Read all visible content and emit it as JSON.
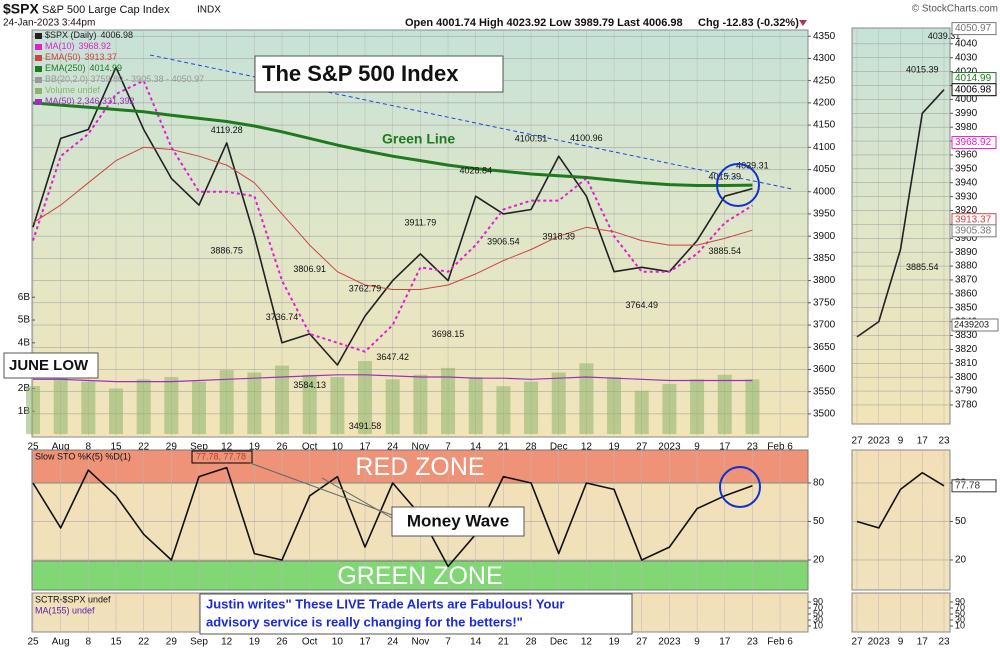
{
  "header": {
    "symbol": "$SPX",
    "name": "S&P 500 Large Cap Index",
    "exchange": "INDX",
    "timestamp": "24-Jan-2023 3:44pm",
    "quote": "Open 4001.74  High 4023.92  Low 3989.79  Last 4006.98",
    "change": "Chg -12.83 (-0.32%)",
    "credit": "© StockCharts.com"
  },
  "chart_data": [
    {
      "type": "line",
      "title": "The S&P 500 Index",
      "annotations": [
        "Green Line",
        "JUNE LOW"
      ],
      "categories": [
        "25",
        "Aug",
        "8",
        "15",
        "22",
        "29",
        "Sep",
        "12",
        "19",
        "26",
        "Oct",
        "10",
        "17",
        "24",
        "Nov",
        "7",
        "14",
        "21",
        "28",
        "Dec",
        "12",
        "19",
        "27",
        "2023",
        "9",
        "17",
        "23",
        "Feb 6"
      ],
      "series": [
        {
          "name": "$SPX (Daily)",
          "legend_value": 4006.98,
          "color": "#222222",
          "width": 1.6,
          "values": [
            3920,
            4120,
            4140,
            4280,
            4140,
            4030,
            3970,
            4110,
            3900,
            3660,
            3680,
            3610,
            3720,
            3800,
            3860,
            3800,
            3990,
            3950,
            3960,
            4080,
            3990,
            3820,
            3830,
            3820,
            3890,
            3990,
            4006.98,
            null
          ]
        },
        {
          "name": "MA(10)",
          "legend_value": 3968.92,
          "color": "#e020d0",
          "width": 2,
          "dash": true,
          "values": [
            3890,
            4080,
            4130,
            4220,
            4250,
            4100,
            4000,
            4000,
            3990,
            3800,
            3680,
            3660,
            3640,
            3700,
            3830,
            3820,
            3880,
            3960,
            3980,
            3980,
            4030,
            3900,
            3820,
            3820,
            3860,
            3930,
            3968.92,
            null
          ]
        },
        {
          "name": "EMA(50)",
          "legend_value": 3913.37,
          "color": "#cc4444",
          "width": 1,
          "values": [
            3930,
            3970,
            4020,
            4070,
            4100,
            4095,
            4080,
            4060,
            4020,
            3950,
            3880,
            3820,
            3790,
            3780,
            3780,
            3790,
            3815,
            3845,
            3870,
            3900,
            3920,
            3910,
            3890,
            3880,
            3880,
            3895,
            3913.37,
            null
          ]
        },
        {
          "name": "EMA(250)",
          "legend_value": 4014.99,
          "color": "#1f7a1f",
          "width": 3,
          "values": [
            4200,
            4195,
            4190,
            4185,
            4180,
            4172,
            4165,
            4158,
            4148,
            4135,
            4120,
            4105,
            4092,
            4080,
            4070,
            4060,
            4052,
            4046,
            4040,
            4036,
            4032,
            4026,
            4020,
            4016,
            4014,
            4014,
            4014.99,
            null
          ]
        }
      ],
      "bollinger": {
        "name": "BB(20,2.0) 3759.80 - 3905.38 - 4050.97",
        "color": "#999999"
      },
      "volume": {
        "name": "Volume undef",
        "color": "#8db36a",
        "ylim": [
          -0.13,
          17.72
        ],
        "yticks": [
          {
            "value": 1,
            "label": "1B"
          },
          {
            "value": 2,
            "label": "2B"
          },
          {
            "value": 3,
            "label": "3B"
          },
          {
            "value": 4,
            "label": "4B"
          },
          {
            "value": 5,
            "label": "5B"
          },
          {
            "value": 6,
            "label": "6B"
          }
        ],
        "values": [
          2.1,
          2.6,
          2.3,
          2.0,
          2.4,
          2.5,
          2.3,
          2.8,
          2.7,
          3.0,
          2.6,
          2.5,
          3.2,
          2.4,
          2.6,
          2.9,
          2.5,
          2.1,
          2.3,
          2.7,
          3.1,
          2.5,
          1.9,
          2.2,
          2.4,
          2.6,
          2.4,
          null
        ],
        "ma": {
          "name": "MA(50) 2,346,331,392",
          "color": "#9b30c0",
          "values": [
            2.4,
            2.4,
            2.35,
            2.3,
            2.3,
            2.3,
            2.35,
            2.4,
            2.45,
            2.5,
            2.55,
            2.6,
            2.6,
            2.55,
            2.5,
            2.5,
            2.45,
            2.45,
            2.4,
            2.45,
            2.5,
            2.45,
            2.4,
            2.35,
            2.35,
            2.35,
            2.35,
            null
          ]
        }
      },
      "peak_labels": [
        null,
        null,
        null,
        null,
        null,
        null,
        null,
        4119.28,
        null,
        null,
        3806.91,
        null,
        3762.79,
        null,
        3911.79,
        null,
        4028.84,
        null,
        4100.51,
        null,
        4100.96,
        null,
        null,
        null,
        null,
        4015.39,
        4039.31,
        null
      ],
      "trough_labels": [
        null,
        null,
        null,
        null,
        null,
        null,
        null,
        3886.75,
        null,
        3736.74,
        3584.13,
        null,
        3491.58,
        3647.42,
        null,
        3698.15,
        null,
        3906.54,
        null,
        3918.39,
        null,
        null,
        3764.49,
        null,
        null,
        3885.54,
        null,
        null
      ],
      "ylim": [
        3448,
        4364
      ],
      "yticks": [
        3500,
        3550,
        3600,
        3650,
        3700,
        3750,
        3800,
        3850,
        3900,
        3950,
        4000,
        4050,
        4100,
        4150,
        4200,
        4250,
        4300,
        4350
      ],
      "grid": true
    },
    {
      "type": "line",
      "annotations": [
        "Money Wave"
      ],
      "series": [
        {
          "name": "Slow STO %K(5) %D(1)",
          "legend_value": "77.78, 77.78",
          "color": "#111111",
          "width": 1.6,
          "values": [
            80,
            45,
            90,
            70,
            40,
            20,
            85,
            92,
            25,
            20,
            70,
            85,
            30,
            80,
            55,
            15,
            40,
            85,
            80,
            25,
            80,
            75,
            20,
            30,
            60,
            70,
            77.78,
            null
          ]
        }
      ],
      "zones": [
        {
          "label": "RED ZONE",
          "from": 80,
          "to": 105.7,
          "color": "#ec7a62"
        },
        {
          "label": "GREEN ZONE",
          "from": -3.4,
          "to": 19.2,
          "color": "#5ed35e"
        }
      ],
      "ylim": [
        -3.4,
        105.7
      ],
      "yticks": [
        20,
        50,
        80
      ],
      "grid": true
    },
    {
      "type": "line",
      "legend": [
        "SCTR-$SPX undef",
        "MA(155) undef"
      ],
      "note_lines": [
        "Justin writes\" These LIVE Trade Alerts are Fabulous! Your",
        "advisory service is really changing for the betters!\""
      ],
      "ylim": [
        -10,
        120
      ],
      "yticks": [
        10,
        30,
        50,
        70,
        90
      ],
      "grid": false
    },
    {
      "type": "line",
      "categories": [
        "27",
        "2023",
        "9",
        "17",
        "23"
      ],
      "values": [
        3829,
        3840,
        3892,
        3990,
        4006.98
      ],
      "color": "#222222",
      "peak_labels": [
        null,
        null,
        null,
        4015.39,
        4039.31
      ],
      "trough_labels": [
        null,
        null,
        null,
        3885.54,
        null
      ],
      "tags": [
        {
          "value": 4050.97,
          "color": "#777777"
        },
        {
          "value": 4014.99,
          "color": "#1f7a1f"
        },
        {
          "value": 4006.98,
          "color": "#000000"
        },
        {
          "value": 3968.92,
          "color": "#e020d0"
        },
        {
          "value": 3913.37,
          "color": "#cc4444"
        },
        {
          "value": 3905.38,
          "color": "#777777"
        }
      ],
      "volume_tag": 2439203,
      "ylim": [
        3766.3,
        4051.4
      ],
      "yticks": [
        3780,
        3790,
        3800,
        3810,
        3820,
        3830,
        3840,
        3850,
        3860,
        3870,
        3880,
        3890,
        3900,
        3910,
        3920,
        3930,
        3940,
        3950,
        3960,
        3970,
        3980,
        3990,
        4000,
        4010,
        4020,
        4030,
        4040
      ],
      "grid": true
    },
    {
      "type": "line",
      "values": [
        50,
        45,
        75,
        88,
        77.78
      ],
      "color": "#111111",
      "tags": [
        {
          "value": 77.78,
          "color": "#333333"
        }
      ],
      "ylim": [
        -3.4,
        105.7
      ],
      "yticks": [
        20,
        50,
        80
      ],
      "grid": true
    },
    {
      "type": "line",
      "ylim": [
        -10,
        120
      ],
      "yticks": [
        10,
        30,
        50,
        70,
        90
      ],
      "grid": false
    }
  ]
}
